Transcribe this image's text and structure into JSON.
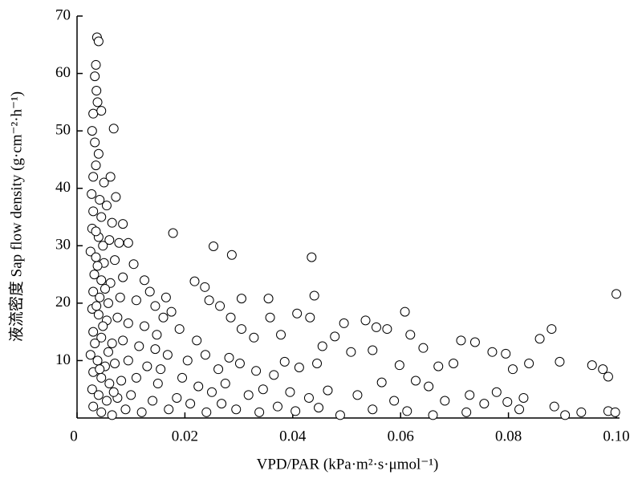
{
  "chart_data": {
    "type": "scatter",
    "xlabel": "VPD/PAR (kPa·m²·s·μmol⁻¹)",
    "ylabel": "液流密度 Sap flow density (g·cm⁻²·h⁻¹)",
    "xlim": [
      0,
      0.1
    ],
    "ylim": [
      0,
      70
    ],
    "xticks": [
      0,
      0.02,
      0.04,
      0.06,
      0.08,
      {
        "value": 0.1,
        "label": "0.10"
      }
    ],
    "yticks": [
      10,
      20,
      30,
      40,
      50,
      60,
      70
    ],
    "color": "#000000",
    "x": [
      0.0037,
      0.004,
      0.0035,
      0.0033,
      0.0036,
      0.0038,
      0.003,
      0.0045,
      0.0068,
      0.0028,
      0.0033,
      0.004,
      0.0035,
      0.003,
      0.005,
      0.0062,
      0.0027,
      0.0042,
      0.0055,
      0.0072,
      0.003,
      0.0045,
      0.0065,
      0.0085,
      0.0028,
      0.004,
      0.006,
      0.0078,
      0.0095,
      0.0025,
      0.0035,
      0.005,
      0.007,
      0.0105,
      0.0032,
      0.0045,
      0.0062,
      0.0085,
      0.0125,
      0.003,
      0.0042,
      0.0058,
      0.008,
      0.011,
      0.0028,
      0.004,
      0.0055,
      0.0075,
      0.0095,
      0.0125,
      0.003,
      0.0045,
      0.0065,
      0.0085,
      0.0115,
      0.0145,
      0.0025,
      0.0038,
      0.0052,
      0.007,
      0.0095,
      0.013,
      0.003,
      0.0045,
      0.006,
      0.0082,
      0.011,
      0.015,
      0.0028,
      0.004,
      0.0055,
      0.0075,
      0.01,
      0.014,
      0.003,
      0.0045,
      0.0065,
      0.009,
      0.012,
      0.017,
      0.0035,
      0.0048,
      0.0038,
      0.0052,
      0.0036,
      0.0048,
      0.0033,
      0.0058,
      0.0042,
      0.0068,
      0.0178,
      0.0253,
      0.0287,
      0.0435,
      0.1,
      0.0218,
      0.0237,
      0.0305,
      0.0355,
      0.044,
      0.0245,
      0.0265,
      0.0285,
      0.0305,
      0.0328,
      0.0358,
      0.0378,
      0.0408,
      0.0432,
      0.0495,
      0.0535,
      0.0555,
      0.0575,
      0.0608,
      0.0618,
      0.0478,
      0.0455,
      0.0508,
      0.0548,
      0.0598,
      0.0642,
      0.067,
      0.0698,
      0.0712,
      0.0738,
      0.077,
      0.0795,
      0.0808,
      0.0838,
      0.0858,
      0.088,
      0.0895,
      0.0955,
      0.0975,
      0.0985,
      0.0445,
      0.0412,
      0.0385,
      0.0365,
      0.0332,
      0.0302,
      0.0282,
      0.0262,
      0.0238,
      0.0222,
      0.0205,
      0.019,
      0.0175,
      0.0165,
      0.0195,
      0.0225,
      0.025,
      0.0275,
      0.0318,
      0.0345,
      0.0395,
      0.043,
      0.0465,
      0.052,
      0.0565,
      0.0588,
      0.0628,
      0.0652,
      0.0682,
      0.0728,
      0.0755,
      0.0778,
      0.0798,
      0.0828,
      0.0885,
      0.0935,
      0.0985,
      0.0998,
      0.0905,
      0.082,
      0.0722,
      0.066,
      0.0612,
      0.0548,
      0.0488,
      0.0448,
      0.0405,
      0.0372,
      0.0338,
      0.0295,
      0.0268,
      0.024,
      0.021,
      0.0185,
      0.0155,
      0.0168,
      0.0148,
      0.016,
      0.0145,
      0.0135
    ],
    "values": [
      66.3,
      65.6,
      61.5,
      59.5,
      57,
      55,
      53,
      53.5,
      50.4,
      50,
      48,
      46,
      44,
      42,
      41,
      42,
      39,
      38,
      37,
      38.5,
      36,
      35,
      34,
      33.8,
      33,
      31.5,
      31,
      30.5,
      30.5,
      29,
      28,
      27,
      27.5,
      26.8,
      25,
      24,
      23.5,
      24.5,
      24,
      22,
      21,
      20,
      21,
      20.5,
      19,
      18,
      17,
      17.5,
      16.5,
      16,
      15,
      14,
      13,
      13.5,
      12.5,
      12,
      11,
      10,
      9,
      9.5,
      10,
      9,
      8,
      7,
      6,
      6.5,
      7,
      6,
      5,
      4,
      3,
      3.5,
      4,
      3,
      2,
      1,
      0.5,
      1.5,
      1,
      1.5,
      32.5,
      30,
      26.5,
      22.5,
      19.5,
      16,
      13,
      11.5,
      8.5,
      4.5,
      32.2,
      29.9,
      28.4,
      28,
      21.6,
      23.8,
      22.8,
      20.8,
      20.8,
      21.3,
      20.5,
      19.5,
      17.5,
      15.5,
      14,
      17.5,
      14.5,
      18.2,
      17.5,
      16.5,
      17,
      15.8,
      15.5,
      18.5,
      14.5,
      14.2,
      12.5,
      11.5,
      11.8,
      9.2,
      12.2,
      9,
      9.5,
      13.5,
      13.2,
      11.5,
      11.2,
      8.5,
      9.5,
      13.8,
      15.5,
      9.8,
      9.2,
      8.5,
      7.2,
      9.5,
      8.8,
      9.8,
      7.5,
      8.2,
      9.5,
      10.5,
      8.5,
      11,
      13.5,
      10,
      15.5,
      18.5,
      21,
      7,
      5.5,
      4.5,
      6,
      4,
      5,
      4.5,
      3.5,
      4.8,
      4,
      6.2,
      3,
      6.5,
      5.5,
      3,
      4,
      2.5,
      4.5,
      2.8,
      3.5,
      2,
      1,
      1.2,
      1,
      0.5,
      1.5,
      1,
      0.5,
      1.2,
      1.5,
      0.5,
      1.8,
      1.2,
      2,
      1,
      1.5,
      2.5,
      1,
      2.5,
      3.5,
      8.5,
      11,
      14.5,
      17.5,
      19.5,
      22
    ]
  }
}
